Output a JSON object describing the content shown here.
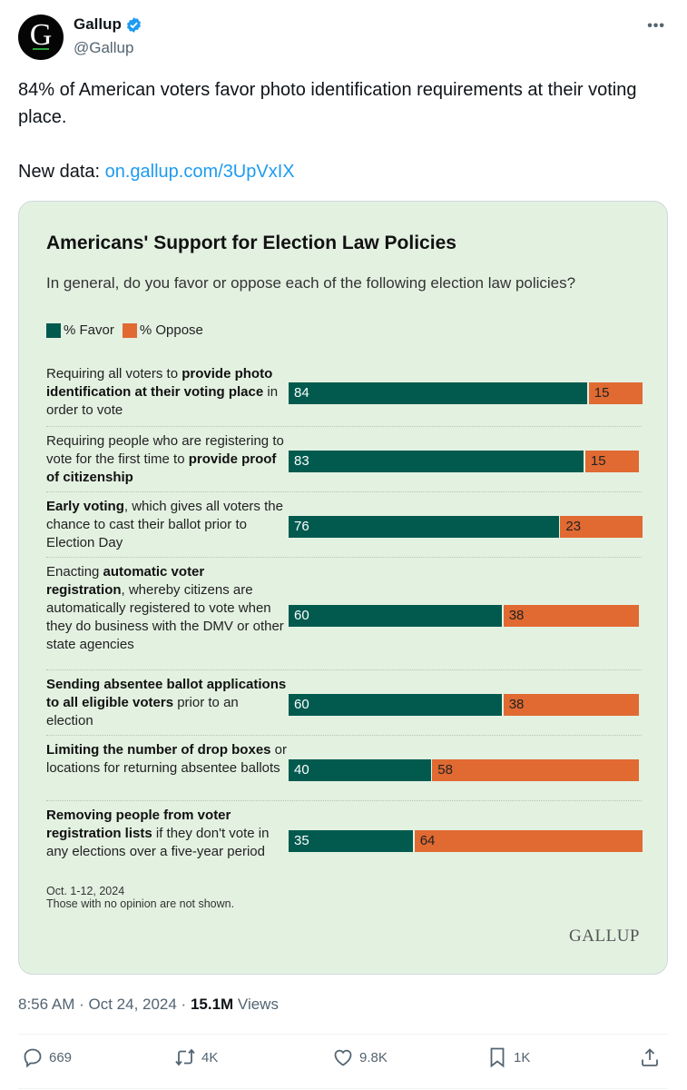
{
  "account": {
    "name": "Gallup",
    "handle": "@Gallup",
    "avatar_letter": "G",
    "verified": true
  },
  "more_label": "•••",
  "tweet": {
    "text_line1": "84% of American voters favor photo identification requirements at their voting place.",
    "link_prefix": "New data: ",
    "link_text": "on.gallup.com/3UpVxIX"
  },
  "meta": {
    "time": "8:56 AM",
    "sep1": " · ",
    "date": "Oct 24, 2024",
    "sep2": " · ",
    "views_count": "15.1M",
    "views_label": " Views"
  },
  "actions": {
    "replies": "669",
    "reposts": "4K",
    "likes": "9.8K",
    "bookmarks": "1K"
  },
  "colors": {
    "favor": "#025a4e",
    "oppose": "#e06a32",
    "card_bg": "#e3f1e1",
    "link": "#1d9bf0"
  },
  "chart_data": {
    "type": "bar",
    "orientation": "horizontal-stacked",
    "title": "Americans' Support for Election Law Policies",
    "subtitle": "In general, do you favor or oppose each of the following election law policies?",
    "legend": [
      "% Favor",
      "% Oppose"
    ],
    "legend_placement": "top-left",
    "xlim": [
      0,
      100
    ],
    "categories": [
      {
        "segments": [
          {
            "t": "Requiring all voters to ",
            "b": false
          },
          {
            "t": "provide photo identification at their voting place",
            "b": true
          },
          {
            "t": " in order to vote",
            "b": false
          }
        ]
      },
      {
        "segments": [
          {
            "t": "Requiring people who are registering to vote for the first time to ",
            "b": false
          },
          {
            "t": "provide proof of citizenship",
            "b": true
          }
        ]
      },
      {
        "segments": [
          {
            "t": "Early voting",
            "b": true
          },
          {
            "t": ", which gives all voters the chance to cast their ballot prior to Election Day",
            "b": false
          }
        ]
      },
      {
        "segments": [
          {
            "t": "Enacting ",
            "b": false
          },
          {
            "t": "automatic voter registration",
            "b": true
          },
          {
            "t": ", whereby citizens are automatically registered to vote when they do business with the DMV or other state agencies",
            "b": false
          }
        ]
      },
      {
        "segments": [
          {
            "t": "Sending absentee ballot applications to all eligible voters",
            "b": true
          },
          {
            "t": " prior to an election",
            "b": false
          }
        ]
      },
      {
        "segments": [
          {
            "t": "Limiting the number of drop boxes",
            "b": true
          },
          {
            "t": " or locations for returning absentee ballots",
            "b": false
          }
        ]
      },
      {
        "segments": [
          {
            "t": "Removing people from voter registration lists",
            "b": true
          },
          {
            "t": " if they don't vote in any elections over a five-year period",
            "b": false
          }
        ]
      }
    ],
    "series": [
      {
        "name": "% Favor",
        "values": [
          84,
          83,
          76,
          60,
          60,
          40,
          35
        ]
      },
      {
        "name": "% Oppose",
        "values": [
          15,
          15,
          23,
          38,
          38,
          58,
          64
        ]
      }
    ],
    "footnote_date": "Oct. 1-12, 2024",
    "footnote_note": "Those with no opinion are not shown.",
    "source_logo": "GALLUP"
  }
}
